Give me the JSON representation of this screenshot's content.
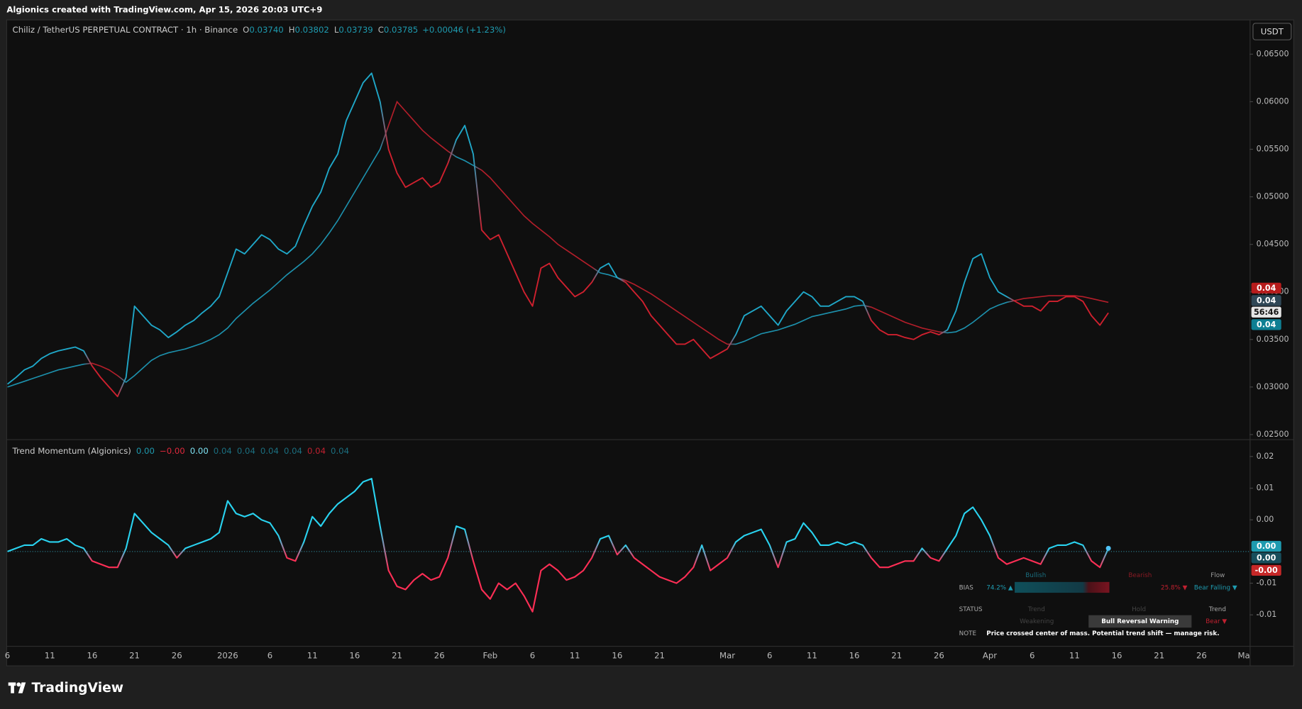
{
  "header": {
    "text": "Algionics created with TradingView.com, Apr 15, 2026 20:03 UTC+9"
  },
  "price_pane": {
    "symbol": "Chiliz / TetherUS PERPETUAL CONTRACT · 1h · Binance",
    "ohlc": [
      {
        "label": "O",
        "value": "0.03740"
      },
      {
        "label": "H",
        "value": "0.03802"
      },
      {
        "label": "L",
        "value": "0.03739"
      },
      {
        "label": "C",
        "value": "0.03785"
      }
    ],
    "change": "+0.00046 (+1.23%)",
    "currency": "USDT",
    "tags": [
      {
        "text": "0.04",
        "color": "#b71c1c",
        "text_color": "#ffffff"
      },
      {
        "text": "0.04",
        "color": "#2f4756",
        "text_color": "#ffffff"
      },
      {
        "text": "56:46",
        "color": "#e6e6e6",
        "text_color": "#111111"
      },
      {
        "text": "0.04",
        "color": "#0f7f93",
        "text_color": "#ffffff"
      }
    ]
  },
  "momentum_pane": {
    "title": "Trend Momentum (Algionics)",
    "values": [
      {
        "text": "0.00",
        "color": "#1e9bb0"
      },
      {
        "text": "−0.00",
        "color": "#e0283c"
      },
      {
        "text": "0.00",
        "color": "#7fe4f5"
      },
      {
        "text": "0.04",
        "color": "#1b6f80"
      },
      {
        "text": "0.04",
        "color": "#1b6f80"
      },
      {
        "text": "0.04",
        "color": "#1b6f80"
      },
      {
        "text": "0.04",
        "color": "#1b6f80"
      },
      {
        "text": "0.04",
        "color": "#c0202f"
      },
      {
        "text": "0.04",
        "color": "#1b6f80"
      }
    ],
    "tags": [
      {
        "text": "0.00",
        "color": "#1e9bb0",
        "text_color": "#ffffff"
      },
      {
        "text": "0.00",
        "color": "#184e5c",
        "text_color": "#ffffff"
      },
      {
        "text": "-0.00",
        "color": "#c62828",
        "text_color": "#ffffff"
      }
    ],
    "table": {
      "bullish": "Bullish",
      "bearish": "Bearish",
      "flow": "Flow",
      "bias_label": "BIAS",
      "bias_bull": "74.2% ▲",
      "bias_bear": "25.8% ▼",
      "flow_value": "Bear Falling ▼",
      "status_label": "STATUS",
      "trend_head": "Trend",
      "hold_head": "Hold",
      "trend_head_2": "Trend",
      "weakening": "Weakening",
      "warning": "Bull Reversal Warning",
      "bear": "Bear ▼",
      "note_label": "NOTE",
      "note": "Price crossed center of mass. Potential trend shift — manage risk."
    }
  },
  "chart_data": [
    {
      "type": "line",
      "bull_color": "#1fa8c9",
      "bear_color": "#d0202e",
      "categories": [
        "6",
        null,
        null,
        null,
        null,
        "11",
        null,
        null,
        null,
        null,
        "16",
        null,
        null,
        null,
        null,
        "21",
        null,
        null,
        null,
        null,
        "26",
        null,
        null,
        null,
        null,
        null,
        "2026",
        null,
        null,
        null,
        null,
        "6",
        null,
        null,
        null,
        null,
        "11",
        null,
        null,
        null,
        null,
        "16",
        null,
        null,
        null,
        null,
        "21",
        null,
        null,
        null,
        null,
        "26",
        null,
        null,
        null,
        null,
        null,
        "Feb",
        null,
        null,
        null,
        null,
        "6",
        null,
        null,
        null,
        null,
        "11",
        null,
        null,
        null,
        null,
        "16",
        null,
        null,
        null,
        null,
        "21",
        null,
        null,
        null,
        null,
        null,
        null,
        null,
        "Mar",
        null,
        null,
        null,
        null,
        "6",
        null,
        null,
        null,
        null,
        "11",
        null,
        null,
        null,
        null,
        "16",
        null,
        null,
        null,
        null,
        "21",
        null,
        null,
        null,
        null,
        "26",
        null,
        null,
        null,
        null,
        null,
        "Apr",
        null,
        null,
        null,
        null,
        "6",
        null,
        null,
        null,
        null,
        "11",
        null,
        null,
        null,
        null,
        "16",
        null,
        null,
        null,
        null,
        "21",
        null,
        null,
        null,
        null,
        "26",
        null,
        null,
        null,
        null,
        "Ma"
      ],
      "series": [
        {
          "values": [
            0.0303,
            0.031,
            0.0318,
            0.0322,
            0.033,
            0.0335,
            0.0338,
            0.034,
            0.0342,
            0.0338,
            0.0322,
            0.031,
            0.03,
            0.029,
            0.031,
            0.0385,
            0.0375,
            0.0365,
            0.036,
            0.0352,
            0.0358,
            0.0365,
            0.037,
            0.0378,
            0.0385,
            0.0395,
            0.042,
            0.0445,
            0.044,
            0.045,
            0.046,
            0.0455,
            0.0445,
            0.044,
            0.0448,
            0.047,
            0.049,
            0.0505,
            0.053,
            0.0545,
            0.058,
            0.06,
            0.062,
            0.063,
            0.06,
            0.055,
            0.0525,
            0.051,
            0.0515,
            0.052,
            0.051,
            0.0515,
            0.0535,
            0.056,
            0.0575,
            0.0545,
            0.0465,
            0.0455,
            0.046,
            0.044,
            0.042,
            0.04,
            0.0385,
            0.0425,
            0.043,
            0.0415,
            0.0405,
            0.0395,
            0.04,
            0.041,
            0.0425,
            0.043,
            0.0415,
            0.041,
            0.04,
            0.039,
            0.0375,
            0.0365,
            0.0355,
            0.0345,
            0.0345,
            0.035,
            0.034,
            0.033,
            0.0335,
            0.034,
            0.0355,
            0.0375,
            0.038,
            0.0385,
            0.0375,
            0.0365,
            0.038,
            0.039,
            0.04,
            0.0395,
            0.0385,
            0.0385,
            0.039,
            0.0395,
            0.0395,
            0.039,
            0.037,
            0.036,
            0.0355,
            0.0355,
            0.0352,
            0.035,
            0.0355,
            0.0358,
            0.0355,
            0.036,
            0.038,
            0.041,
            0.0435,
            0.044,
            0.0415,
            0.04,
            0.0395,
            0.039,
            0.0385,
            0.0385,
            0.038,
            0.039,
            0.039,
            0.0395,
            0.0395,
            0.039,
            0.0375,
            0.0365,
            0.0378,
            null,
            null,
            null,
            null,
            null,
            null,
            null,
            null,
            null,
            null,
            null,
            null,
            null,
            null,
            null,
            null
          ]
        },
        {
          "values": [
            0.03,
            0.0303,
            0.0306,
            0.0309,
            0.0312,
            0.0315,
            0.0318,
            0.032,
            0.0322,
            0.0324,
            0.0325,
            0.0322,
            0.0318,
            0.0312,
            0.0305,
            0.0312,
            0.032,
            0.0328,
            0.0333,
            0.0336,
            0.0338,
            0.034,
            0.0343,
            0.0346,
            0.035,
            0.0355,
            0.0362,
            0.0372,
            0.038,
            0.0388,
            0.0395,
            0.0402,
            0.041,
            0.0418,
            0.0425,
            0.0432,
            0.044,
            0.045,
            0.0462,
            0.0475,
            0.049,
            0.0505,
            0.052,
            0.0535,
            0.055,
            0.0575,
            0.06,
            0.059,
            0.058,
            0.057,
            0.0562,
            0.0555,
            0.0548,
            0.0542,
            0.0538,
            0.0533,
            0.0528,
            0.052,
            0.051,
            0.05,
            0.049,
            0.048,
            0.0472,
            0.0465,
            0.0458,
            0.045,
            0.0444,
            0.0438,
            0.0432,
            0.0426,
            0.042,
            0.0418,
            0.0415,
            0.0412,
            0.0408,
            0.0403,
            0.0398,
            0.0392,
            0.0386,
            0.038,
            0.0374,
            0.0368,
            0.0362,
            0.0356,
            0.035,
            0.0345,
            0.0345,
            0.0348,
            0.0352,
            0.0356,
            0.0358,
            0.036,
            0.0363,
            0.0366,
            0.037,
            0.0374,
            0.0376,
            0.0378,
            0.038,
            0.0382,
            0.0385,
            0.0386,
            0.0384,
            0.038,
            0.0376,
            0.0372,
            0.0368,
            0.0365,
            0.0362,
            0.036,
            0.0358,
            0.0357,
            0.0358,
            0.0362,
            0.0368,
            0.0375,
            0.0382,
            0.0386,
            0.0389,
            0.0391,
            0.0393,
            0.0394,
            0.0395,
            0.0396,
            0.0396,
            0.0396,
            0.0396,
            0.0395,
            0.0393,
            0.0391,
            0.0389,
            null,
            null,
            null,
            null,
            null,
            null,
            null,
            null,
            null,
            null,
            null,
            null,
            null,
            null,
            null,
            null
          ]
        }
      ],
      "ylim": [
        0.0246,
        0.0686
      ],
      "yticks": [
        {
          "value": 0.025,
          "label": "0.02500"
        },
        {
          "value": 0.03,
          "label": "0.03000"
        },
        {
          "value": 0.035,
          "label": "0.03500"
        },
        {
          "value": 0.04,
          "label": "0.04000"
        },
        {
          "value": 0.045,
          "label": "0.04500"
        },
        {
          "value": 0.05,
          "label": "0.05000"
        },
        {
          "value": 0.055,
          "label": "0.05500"
        },
        {
          "value": 0.06,
          "label": "0.06000"
        },
        {
          "value": 0.065,
          "label": "0.06500"
        }
      ]
    },
    {
      "type": "line",
      "up_color": "#29d3f0",
      "down_color": "#ff2e55",
      "series": [
        {
          "values": [
            0,
            0.0005,
            0.001,
            0.001,
            0.002,
            0.0015,
            0.0015,
            0.002,
            0.001,
            0.0005,
            -0.0015,
            -0.002,
            -0.0025,
            -0.0025,
            0.0005,
            0.006,
            0.0045,
            0.003,
            0.002,
            0.001,
            -0.001,
            0.0005,
            0.001,
            0.0015,
            0.002,
            0.003,
            0.008,
            0.006,
            0.0055,
            0.006,
            0.005,
            0.0045,
            0.0025,
            -0.001,
            -0.0015,
            0.0015,
            0.0055,
            0.004,
            0.006,
            0.0075,
            0.0085,
            0.0095,
            0.011,
            0.0115,
            0.004,
            -0.003,
            -0.0055,
            -0.006,
            -0.0045,
            -0.0035,
            -0.0045,
            -0.004,
            -0.001,
            0.004,
            0.0035,
            -0.0015,
            -0.006,
            -0.0075,
            -0.005,
            -0.006,
            -0.005,
            -0.007,
            -0.0095,
            -0.003,
            -0.002,
            -0.003,
            -0.0045,
            -0.004,
            -0.003,
            -0.001,
            0.002,
            0.0025,
            -0.0005,
            0.001,
            -0.001,
            -0.002,
            -0.003,
            -0.004,
            -0.0045,
            -0.005,
            -0.004,
            -0.0025,
            0.001,
            -0.003,
            -0.002,
            -0.001,
            0.0015,
            0.0025,
            0.003,
            0.0035,
            0.001,
            -0.0025,
            0.0015,
            0.002,
            0.0045,
            0.003,
            0.001,
            0.001,
            0.0015,
            0.001,
            0.0015,
            0.001,
            -0.001,
            -0.0025,
            -0.0025,
            -0.002,
            -0.0015,
            -0.0015,
            0.0005,
            -0.001,
            -0.0015,
            0.0005,
            0.0025,
            0.006,
            0.007,
            0.005,
            0.0025,
            -0.001,
            -0.002,
            -0.0015,
            -0.001,
            -0.0015,
            -0.002,
            0.0005,
            0.001,
            0.001,
            0.0015,
            0.001,
            -0.0015,
            -0.0025,
            0.0005,
            null,
            null,
            null,
            null,
            null,
            null,
            null,
            null,
            null,
            null,
            null,
            null,
            null,
            null,
            null,
            null
          ]
        }
      ],
      "ylim": [
        -0.0149,
        0.0176
      ],
      "yticks": [
        {
          "value": 0.015,
          "label": "0.02"
        },
        0.01,
        {
          "value": 0.005,
          "label": "0.00"
        },
        {
          "value": -0.005,
          "label": "-0.01"
        },
        -0.01
      ]
    }
  ],
  "footer": {
    "brand": "TradingView"
  }
}
